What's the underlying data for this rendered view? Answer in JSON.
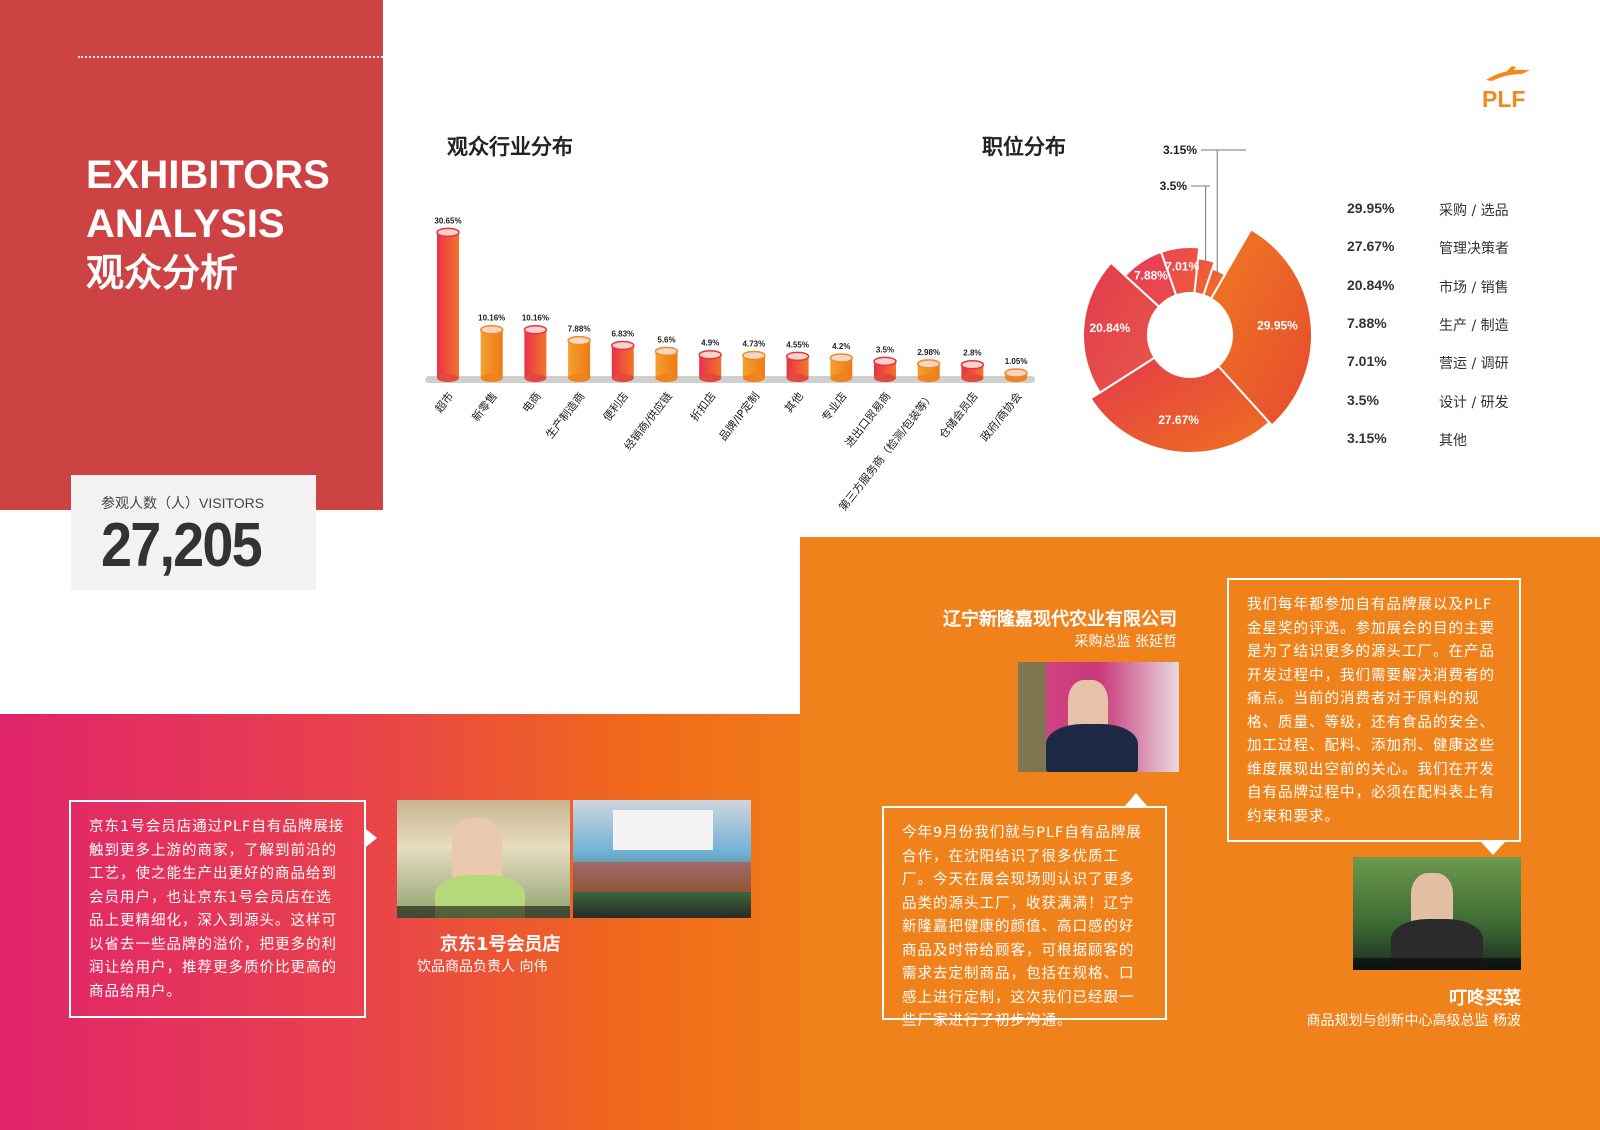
{
  "header": {
    "title_en_line1": "EXHIBITORS",
    "title_en_line2": "ANALYSIS",
    "title_cn": "观众分析"
  },
  "logo": {
    "text": "PLF",
    "color": "#f08a1b"
  },
  "visitors": {
    "label": "参观人数（人）VISITORS",
    "value": "27,205"
  },
  "industry_chart": {
    "title": "观众行业分布"
  },
  "position_chart": {
    "title": "职位分布"
  },
  "chart_data": [
    {
      "type": "bar",
      "title": "观众行业分布",
      "categories": [
        "超市",
        "新零售",
        "电商",
        "生产制造商",
        "便利店",
        "经销商/供应链",
        "折扣店",
        "品牌/IP定制",
        "其他",
        "专业店",
        "进出口贸易商",
        "第三方服务商（检测/包装等）",
        "仓储会员店",
        "政府/商协会"
      ],
      "values": [
        30.65,
        10.16,
        10.16,
        7.88,
        6.83,
        5.6,
        4.9,
        4.73,
        4.55,
        4.2,
        3.5,
        2.98,
        2.8,
        1.05
      ],
      "value_labels": [
        "30.65%",
        "10.16%",
        "10.16%",
        "7.88%",
        "6.83%",
        "5.6%",
        "4.9%",
        "4.73%",
        "4.55%",
        "4.2%",
        "3.5%",
        "2.98%",
        "2.8%",
        "1.05%"
      ],
      "colors": [
        "#e8344f",
        "#f28a1c"
      ],
      "ylim": [
        0,
        32
      ]
    },
    {
      "type": "pie",
      "title": "职位分布",
      "slices": [
        {
          "label": "采购 / 选品",
          "value": 29.95,
          "pct_label": "29.95%"
        },
        {
          "label": "管理决策者",
          "value": 27.67,
          "pct_label": "27.67%"
        },
        {
          "label": "市场 / 销售",
          "value": 20.84,
          "pct_label": "20.84%"
        },
        {
          "label": "生产 / 制造",
          "value": 7.88,
          "pct_label": "7.88%"
        },
        {
          "label": "营运 / 调研",
          "value": 7.01,
          "pct_label": "7.01%"
        },
        {
          "label": "设计 / 研发",
          "value": 3.5,
          "pct_label": "3.5%"
        },
        {
          "label": "其他",
          "value": 3.15,
          "pct_label": "3.15%"
        }
      ],
      "colors": [
        "#e8344f",
        "#f28a1c"
      ]
    }
  ],
  "testimonials": {
    "jd": {
      "quote": "京东1号会员店通过PLF自有品牌展接触到更多上游的商家，了解到前沿的工艺，使之能生产出更好的商品给到会员用户，也让京东1号会员店在选品上更精细化，深入到源头。这样可以省去一些品牌的溢价，把更多的利润让给用户，推荐更多质价比更高的商品给用户。",
      "company": "京东1号会员店",
      "role": "饮品商品负责人  向伟"
    },
    "ln": {
      "company": "辽宁新隆嘉现代农业有限公司",
      "role": "采购总监   张延哲",
      "quote": "今年9月份我们就与PLF自有品牌展合作，在沈阳结识了很多优质工厂。今天在展会现场则认识了更多品类的源头工厂，收获满满！辽宁新隆嘉把健康的颜值、高口感的好商品及时带给顾客，可根据顾客的需求去定制商品，包括在规格、口感上进行定制，这次我们已经跟一些厂家进行了初步沟通。"
    },
    "dd": {
      "quote": "我们每年都参加自有品牌展以及PLF金星奖的评选。参加展会的目的主要是为了结识更多的源头工厂。在产品开发过程中，我们需要解决消费者的痛点。当前的消费者对于原料的规格、质量、等级，还有食品的安全、加工过程、配料、添加剂、健康这些维度展现出空前的关心。我们在开发自有品牌过程中，必须在配料表上有约束和要求。",
      "company": "叮咚买菜",
      "role": "商品规划与创新中心高级总监   杨波"
    }
  }
}
